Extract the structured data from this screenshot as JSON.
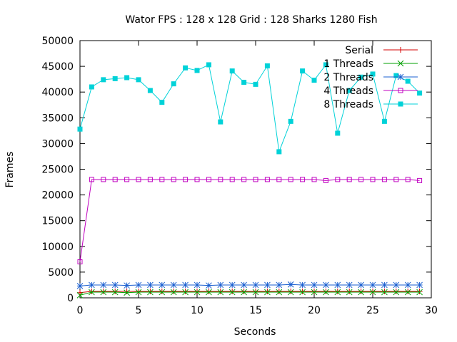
{
  "chart_data": {
    "type": "line",
    "title": "Wator FPS : 128 x 128 Grid : 128 Sharks 1280 Fish",
    "xlabel": "Seconds",
    "ylabel": "Frames",
    "xlim": [
      0,
      30
    ],
    "ylim": [
      0,
      50000
    ],
    "xticks": [
      0,
      5,
      10,
      15,
      20,
      25,
      30
    ],
    "yticks": [
      0,
      5000,
      10000,
      15000,
      20000,
      25000,
      30000,
      35000,
      40000,
      45000,
      50000
    ],
    "grid": false,
    "legend_position": "top-right",
    "x": [
      0,
      1,
      2,
      3,
      4,
      5,
      6,
      7,
      8,
      9,
      10,
      11,
      12,
      13,
      14,
      15,
      16,
      17,
      18,
      19,
      20,
      21,
      22,
      23,
      24,
      25,
      26,
      27,
      28,
      29
    ],
    "series": [
      {
        "name": "Serial",
        "color": "#d40000",
        "marker": "plus",
        "values": [
          1000,
          1250,
          1250,
          1250,
          1250,
          1250,
          1250,
          1250,
          1250,
          1250,
          1250,
          1250,
          1250,
          1250,
          1250,
          1250,
          1250,
          1250,
          1250,
          1250,
          1250,
          1250,
          1250,
          1250,
          1250,
          1250,
          1250,
          1250,
          1250,
          1250
        ]
      },
      {
        "name": "1 Threads",
        "color": "#00a000",
        "marker": "cross",
        "values": [
          500,
          1100,
          1100,
          1100,
          1000,
          1100,
          1100,
          1100,
          1100,
          1100,
          1100,
          1100,
          1100,
          1100,
          1100,
          1100,
          1100,
          1100,
          1100,
          1100,
          1100,
          1100,
          1100,
          1100,
          1100,
          1100,
          1100,
          1100,
          1100,
          1100
        ]
      },
      {
        "name": "2 Threads",
        "color": "#1a5fd0",
        "marker": "star",
        "values": [
          2300,
          2500,
          2500,
          2500,
          2400,
          2500,
          2500,
          2500,
          2500,
          2500,
          2500,
          2400,
          2500,
          2500,
          2500,
          2500,
          2500,
          2500,
          2600,
          2500,
          2500,
          2500,
          2500,
          2500,
          2500,
          2500,
          2500,
          2500,
          2500,
          2500
        ]
      },
      {
        "name": "4 Threads",
        "color": "#c000c0",
        "marker": "square-open",
        "values": [
          7000,
          23000,
          23000,
          23000,
          23000,
          23000,
          23000,
          23000,
          23000,
          23000,
          23000,
          23000,
          23000,
          23000,
          23000,
          23000,
          23000,
          23000,
          23000,
          23000,
          23000,
          22800,
          23000,
          23000,
          23000,
          23000,
          23000,
          23000,
          23000,
          22800
        ]
      },
      {
        "name": "8 Threads",
        "color": "#00d2d8",
        "marker": "square-filled",
        "values": [
          32800,
          41000,
          42400,
          42600,
          42800,
          42400,
          40300,
          38000,
          41600,
          44700,
          44200,
          45300,
          34200,
          44100,
          41900,
          41500,
          45100,
          28400,
          34300,
          44100,
          42300,
          45300,
          32000,
          40300,
          42900,
          43500,
          34300,
          43200,
          42100,
          39800
        ]
      }
    ]
  }
}
